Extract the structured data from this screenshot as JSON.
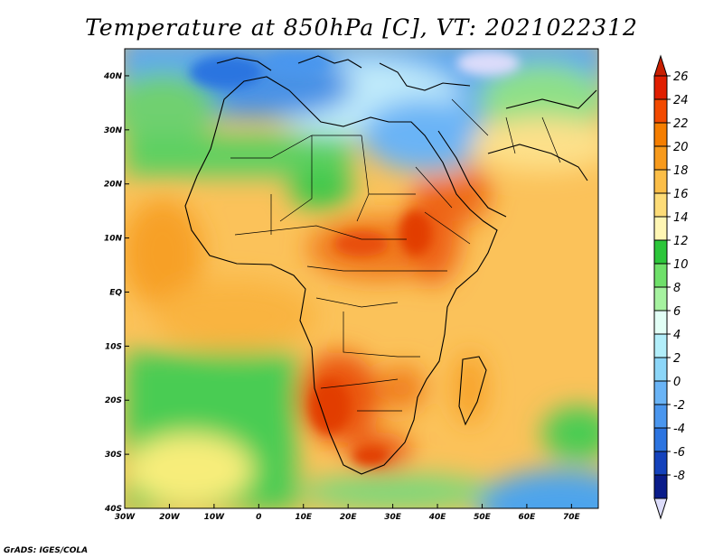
{
  "title": "Temperature at 850hPa [C], VT: 2021022312",
  "credit": "GrADS: IGES/COLA",
  "map": {
    "lon_range": [
      -30,
      76
    ],
    "lat_range": [
      -40,
      45
    ],
    "lon_ticks": [
      {
        "value": -30,
        "label": "30W"
      },
      {
        "value": -20,
        "label": "20W"
      },
      {
        "value": -10,
        "label": "10W"
      },
      {
        "value": 0,
        "label": "0"
      },
      {
        "value": 10,
        "label": "10E"
      },
      {
        "value": 20,
        "label": "20E"
      },
      {
        "value": 30,
        "label": "30E"
      },
      {
        "value": 40,
        "label": "40E"
      },
      {
        "value": 50,
        "label": "50E"
      },
      {
        "value": 60,
        "label": "60E"
      },
      {
        "value": 70,
        "label": "70E"
      }
    ],
    "lat_ticks": [
      {
        "value": 40,
        "label": "40N"
      },
      {
        "value": 30,
        "label": "30N"
      },
      {
        "value": 20,
        "label": "20N"
      },
      {
        "value": 10,
        "label": "10N"
      },
      {
        "value": 0,
        "label": "EQ"
      },
      {
        "value": -10,
        "label": "10S"
      },
      {
        "value": -20,
        "label": "20S"
      },
      {
        "value": -30,
        "label": "30S"
      },
      {
        "value": -40,
        "label": "40S"
      }
    ]
  },
  "colorbar": {
    "levels": [
      "26",
      "24",
      "22",
      "20",
      "18",
      "16",
      "14",
      "12",
      "10",
      "8",
      "6",
      "4",
      "2",
      "0",
      "-2",
      "-4",
      "-6",
      "-8"
    ],
    "colors": [
      "#e01e00",
      "#f24a00",
      "#f57e00",
      "#f79a1c",
      "#fbbe48",
      "#fddc78",
      "#fff6b4",
      "#2cc63a",
      "#6fe06a",
      "#a6f2a0",
      "#e2fff6",
      "#b2eefa",
      "#8cd6f8",
      "#6ab4f6",
      "#4a96ee",
      "#2c74e0",
      "#1442bc",
      "#0a1c8a"
    ],
    "top_color": "#c81e00",
    "bottom_color": "#dcdcfa"
  }
}
